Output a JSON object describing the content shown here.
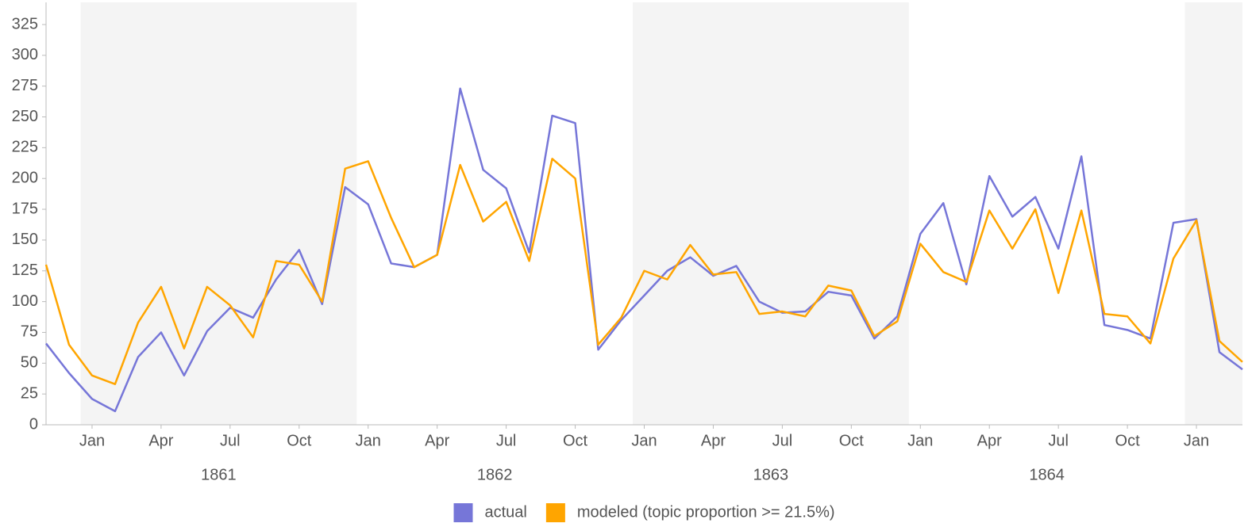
{
  "chart_data": {
    "type": "line",
    "x": [
      "1860-11",
      "1860-12",
      "1861-01",
      "1861-02",
      "1861-03",
      "1861-04",
      "1861-05",
      "1861-06",
      "1861-07",
      "1861-08",
      "1861-09",
      "1861-10",
      "1861-11",
      "1861-12",
      "1862-01",
      "1862-02",
      "1862-03",
      "1862-04",
      "1862-05",
      "1862-06",
      "1862-07",
      "1862-08",
      "1862-09",
      "1862-10",
      "1862-11",
      "1862-12",
      "1863-01",
      "1863-02",
      "1863-03",
      "1863-04",
      "1863-05",
      "1863-06",
      "1863-07",
      "1863-08",
      "1863-09",
      "1863-10",
      "1863-11",
      "1863-12",
      "1864-01",
      "1864-02",
      "1864-03",
      "1864-04",
      "1864-05",
      "1864-06",
      "1864-07",
      "1864-08",
      "1864-09",
      "1864-10",
      "1864-11",
      "1864-12",
      "1865-01",
      "1865-02",
      "1865-03"
    ],
    "series": [
      {
        "name": "actual",
        "color": "#7676d8",
        "values": [
          66,
          42,
          21,
          11,
          55,
          75,
          40,
          76,
          95,
          87,
          118,
          142,
          98,
          193,
          179,
          131,
          128,
          138,
          273,
          207,
          192,
          140,
          251,
          245,
          61,
          85,
          105,
          125,
          136,
          121,
          129,
          100,
          91,
          92,
          108,
          105,
          70,
          88,
          155,
          180,
          114,
          202,
          169,
          185,
          143,
          218,
          81,
          77,
          70,
          164,
          167,
          59,
          45
        ]
      },
      {
        "name": "modeled (topic proportion >= 21.5%)",
        "color": "#ffa500",
        "values": [
          130,
          65,
          40,
          33,
          83,
          112,
          62,
          112,
          97,
          71,
          133,
          130,
          100,
          208,
          214,
          168,
          128,
          138,
          211,
          165,
          181,
          133,
          216,
          200,
          65,
          87,
          125,
          118,
          146,
          122,
          124,
          90,
          92,
          88,
          113,
          109,
          72,
          84,
          147,
          124,
          116,
          174,
          143,
          175,
          107,
          174,
          90,
          88,
          66,
          135,
          166,
          68,
          51
        ]
      }
    ],
    "xlim": [
      "1860-11",
      "1865-03"
    ],
    "xticks": [
      {
        "value": "1861-01",
        "label": "Jan"
      },
      {
        "value": "1861-04",
        "label": "Apr"
      },
      {
        "value": "1861-07",
        "label": "Jul"
      },
      {
        "value": "1861-10",
        "label": "Oct"
      },
      {
        "value": "1862-01",
        "label": "Jan"
      },
      {
        "value": "1862-04",
        "label": "Apr"
      },
      {
        "value": "1862-07",
        "label": "Jul"
      },
      {
        "value": "1862-10",
        "label": "Oct"
      },
      {
        "value": "1863-01",
        "label": "Jan"
      },
      {
        "value": "1863-04",
        "label": "Apr"
      },
      {
        "value": "1863-07",
        "label": "Jul"
      },
      {
        "value": "1863-10",
        "label": "Oct"
      },
      {
        "value": "1864-01",
        "label": "Jan"
      },
      {
        "value": "1864-04",
        "label": "Apr"
      },
      {
        "value": "1864-07",
        "label": "Jul"
      },
      {
        "value": "1864-10",
        "label": "Oct"
      },
      {
        "value": "1865-01",
        "label": "Jan"
      }
    ],
    "years": [
      1861,
      1862,
      1863,
      1864
    ],
    "ylim": [
      0,
      343
    ],
    "yticks": [
      0,
      25,
      50,
      75,
      100,
      125,
      150,
      175,
      200,
      225,
      250,
      275,
      300,
      325
    ],
    "legend": "bottom"
  }
}
